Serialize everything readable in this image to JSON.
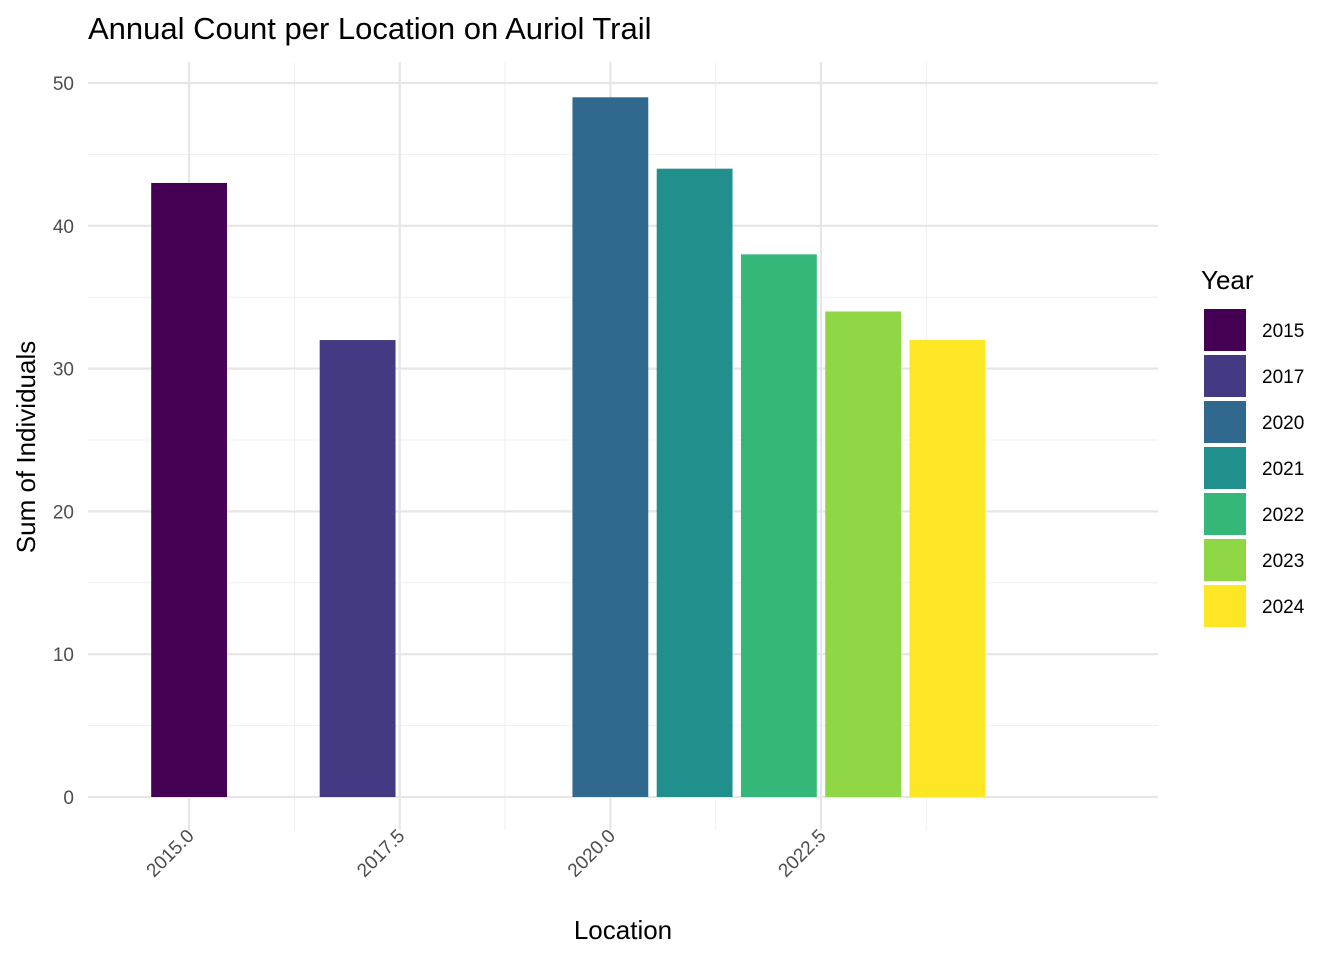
{
  "chart_data": {
    "type": "bar",
    "title": "Annual Count per Location on Auriol Trail",
    "xlabel": "Location",
    "ylabel": "Sum of Individuals",
    "x": [
      2015,
      2017,
      2020,
      2021,
      2022,
      2023,
      2024
    ],
    "values": [
      43,
      32,
      49,
      44,
      38,
      34,
      32
    ],
    "xlim": [
      2013.8,
      2026.5
    ],
    "ylim": [
      0,
      50
    ],
    "x_ticks": [
      2015.0,
      2017.5,
      2020.0,
      2022.5
    ],
    "x_tick_labels": [
      "2015.0",
      "2017.5",
      "2020.0",
      "2022.5"
    ],
    "y_ticks": [
      0,
      10,
      20,
      30,
      40,
      50
    ],
    "y_tick_labels": [
      "0",
      "10",
      "20",
      "30",
      "40",
      "50"
    ],
    "grid": true,
    "legend": {
      "title": "Year",
      "position": "right",
      "entries": [
        "2015",
        "2017",
        "2020",
        "2021",
        "2022",
        "2023",
        "2024"
      ]
    },
    "colors": [
      "#440154",
      "#443A83",
      "#31688E",
      "#21908C",
      "#35B779",
      "#8FD744",
      "#FDE725"
    ]
  }
}
